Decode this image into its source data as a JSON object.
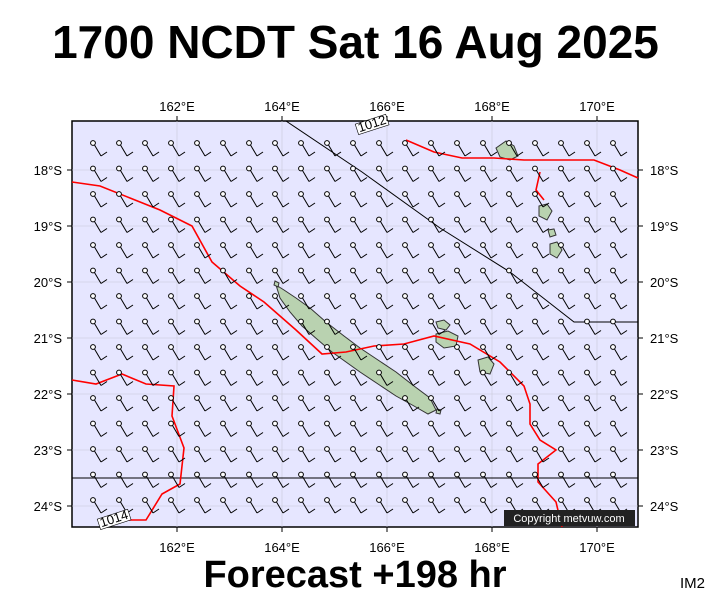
{
  "title": "1700 NCDT Sat 16 Aug 2025",
  "footer": "Forecast +198 hr",
  "product_tag": "IM2",
  "copyright": "Copyright metvuw.com",
  "isobars": [
    "1012",
    "1014"
  ],
  "axes": {
    "lon_labels": [
      "162°E",
      "164°E",
      "166°E",
      "168°E",
      "170°E"
    ],
    "lat_labels": [
      "18°S",
      "19°S",
      "20°S",
      "21°S",
      "22°S",
      "23°S",
      "24°S"
    ],
    "lon_range": [
      160.1,
      170.9
    ],
    "lat_range": [
      -17.25,
      -24.4
    ]
  },
  "colors": {
    "ocean": "#e6e6ff",
    "land": "#b9d2b0",
    "convergence": "#ff0000",
    "isobar": "#000000",
    "frame": "#000000"
  },
  "icons": [
    "wind-barb-icon",
    "calm-circle-icon"
  ]
}
